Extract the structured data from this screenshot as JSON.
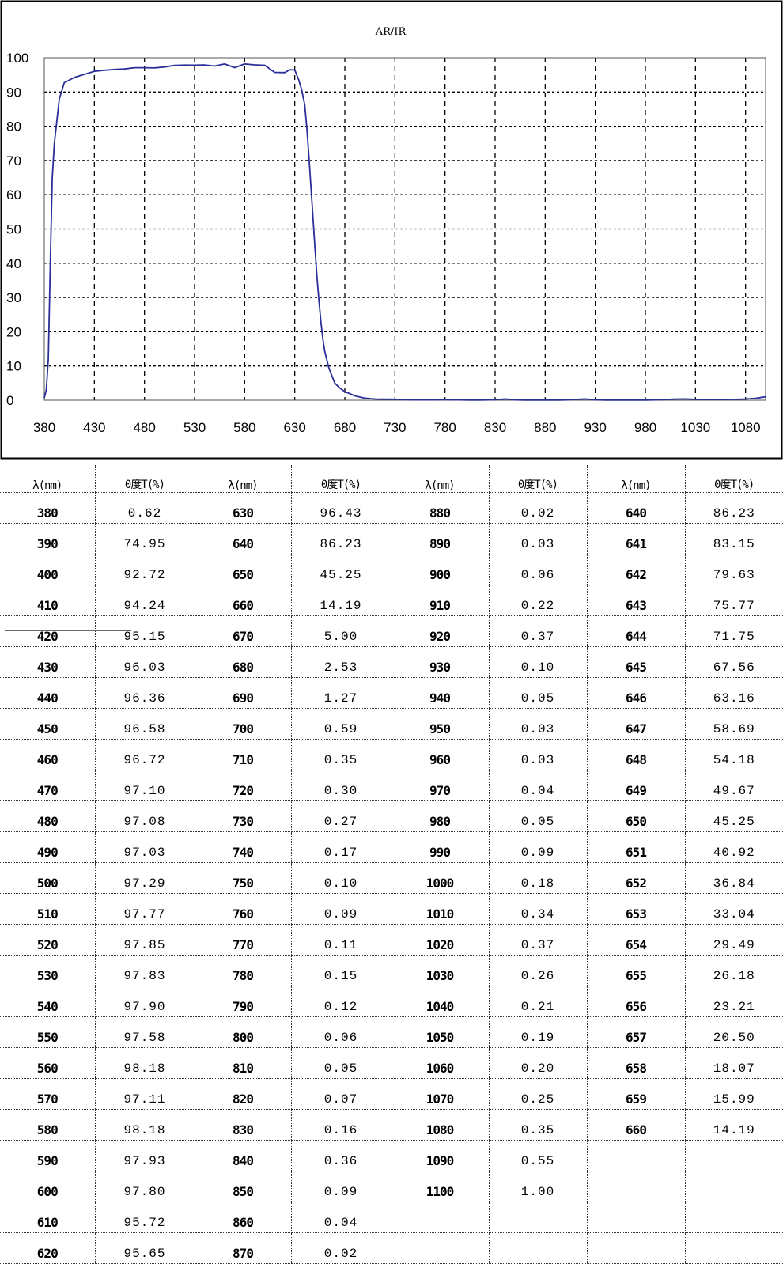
{
  "chart_data": {
    "type": "line",
    "title": "AR/IR",
    "xlabel": "",
    "ylabel": "",
    "xlim": [
      380,
      1100
    ],
    "ylim": [
      0,
      100
    ],
    "x_ticks": [
      380,
      430,
      480,
      530,
      580,
      630,
      680,
      730,
      780,
      830,
      880,
      930,
      980,
      1030,
      1080
    ],
    "y_ticks": [
      0,
      10,
      20,
      30,
      40,
      50,
      60,
      70,
      80,
      90,
      100
    ],
    "grid": true,
    "legend": "none",
    "line_color": "#2a2f9a",
    "series": [
      {
        "x": [
          380,
          382,
          384,
          386,
          388,
          390,
          395,
          400,
          410,
          420,
          430,
          440,
          450,
          460,
          470,
          480,
          490,
          500,
          510,
          520,
          530,
          540,
          550,
          560,
          570,
          580,
          590,
          600,
          610,
          620,
          625,
          630,
          634,
          637,
          640,
          642,
          644,
          646,
          648,
          650,
          652,
          654,
          656,
          658,
          660,
          664,
          670,
          675,
          680,
          690,
          700,
          710,
          720,
          730,
          740,
          750,
          760,
          770,
          780,
          790,
          800,
          810,
          820,
          830,
          840,
          850,
          860,
          870,
          880,
          890,
          900,
          910,
          920,
          930,
          940,
          950,
          960,
          970,
          980,
          990,
          1000,
          1010,
          1020,
          1030,
          1040,
          1050,
          1060,
          1070,
          1080,
          1090,
          1100
        ],
        "y": [
          0.62,
          3,
          12,
          40,
          65,
          74.95,
          88,
          92.72,
          94.24,
          95.15,
          96.03,
          96.36,
          96.58,
          96.72,
          97.1,
          97.08,
          97.03,
          97.29,
          97.77,
          97.85,
          97.83,
          97.9,
          97.58,
          98.18,
          97.11,
          98.18,
          97.93,
          97.8,
          95.72,
          95.65,
          96.5,
          96.43,
          93.5,
          90.5,
          86.23,
          79.63,
          71.75,
          63.16,
          54.18,
          45.25,
          36.84,
          29.49,
          23.21,
          18.07,
          14.19,
          9.5,
          5.0,
          3.5,
          2.53,
          1.27,
          0.59,
          0.35,
          0.3,
          0.27,
          0.17,
          0.1,
          0.09,
          0.11,
          0.15,
          0.12,
          0.06,
          0.05,
          0.07,
          0.16,
          0.36,
          0.09,
          0.04,
          0.02,
          0.02,
          0.03,
          0.06,
          0.22,
          0.37,
          0.1,
          0.05,
          0.03,
          0.03,
          0.04,
          0.05,
          0.09,
          0.18,
          0.34,
          0.37,
          0.26,
          0.21,
          0.19,
          0.2,
          0.25,
          0.35,
          0.55,
          1.0
        ]
      }
    ]
  },
  "table": {
    "headers": [
      "λ(nm)",
      "0度T(%)",
      "λ(nm)",
      "0度T(%)",
      "λ(nm)",
      "0度T(%)",
      "λ(nm)",
      "0度T(%)"
    ],
    "rows": [
      [
        "380",
        "0.62",
        "630",
        "96.43",
        "880",
        "0.02",
        "640",
        "86.23"
      ],
      [
        "390",
        "74.95",
        "640",
        "86.23",
        "890",
        "0.03",
        "641",
        "83.15"
      ],
      [
        "400",
        "92.72",
        "650",
        "45.25",
        "900",
        "0.06",
        "642",
        "79.63"
      ],
      [
        "410",
        "94.24",
        "660",
        "14.19",
        "910",
        "0.22",
        "643",
        "75.77"
      ],
      [
        "420",
        "95.15",
        "670",
        "5.00",
        "920",
        "0.37",
        "644",
        "71.75"
      ],
      [
        "430",
        "96.03",
        "680",
        "2.53",
        "930",
        "0.10",
        "645",
        "67.56"
      ],
      [
        "440",
        "96.36",
        "690",
        "1.27",
        "940",
        "0.05",
        "646",
        "63.16"
      ],
      [
        "450",
        "96.58",
        "700",
        "0.59",
        "950",
        "0.03",
        "647",
        "58.69"
      ],
      [
        "460",
        "96.72",
        "710",
        "0.35",
        "960",
        "0.03",
        "648",
        "54.18"
      ],
      [
        "470",
        "97.10",
        "720",
        "0.30",
        "970",
        "0.04",
        "649",
        "49.67"
      ],
      [
        "480",
        "97.08",
        "730",
        "0.27",
        "980",
        "0.05",
        "650",
        "45.25"
      ],
      [
        "490",
        "97.03",
        "740",
        "0.17",
        "990",
        "0.09",
        "651",
        "40.92"
      ],
      [
        "500",
        "97.29",
        "750",
        "0.10",
        "1000",
        "0.18",
        "652",
        "36.84"
      ],
      [
        "510",
        "97.77",
        "760",
        "0.09",
        "1010",
        "0.34",
        "653",
        "33.04"
      ],
      [
        "520",
        "97.85",
        "770",
        "0.11",
        "1020",
        "0.37",
        "654",
        "29.49"
      ],
      [
        "530",
        "97.83",
        "780",
        "0.15",
        "1030",
        "0.26",
        "655",
        "26.18"
      ],
      [
        "540",
        "97.90",
        "790",
        "0.12",
        "1040",
        "0.21",
        "656",
        "23.21"
      ],
      [
        "550",
        "97.58",
        "800",
        "0.06",
        "1050",
        "0.19",
        "657",
        "20.50"
      ],
      [
        "560",
        "98.18",
        "810",
        "0.05",
        "1060",
        "0.20",
        "658",
        "18.07"
      ],
      [
        "570",
        "97.11",
        "820",
        "0.07",
        "1070",
        "0.25",
        "659",
        "15.99"
      ],
      [
        "580",
        "98.18",
        "830",
        "0.16",
        "1080",
        "0.35",
        "660",
        "14.19"
      ],
      [
        "590",
        "97.93",
        "840",
        "0.36",
        "1090",
        "0.55",
        "",
        ""
      ],
      [
        "600",
        "97.80",
        "850",
        "0.09",
        "1100",
        "1.00",
        "",
        ""
      ],
      [
        "610",
        "95.72",
        "860",
        "0.04",
        "",
        "",
        "",
        ""
      ],
      [
        "620",
        "95.65",
        "870",
        "0.02",
        "",
        "",
        "",
        ""
      ]
    ]
  }
}
